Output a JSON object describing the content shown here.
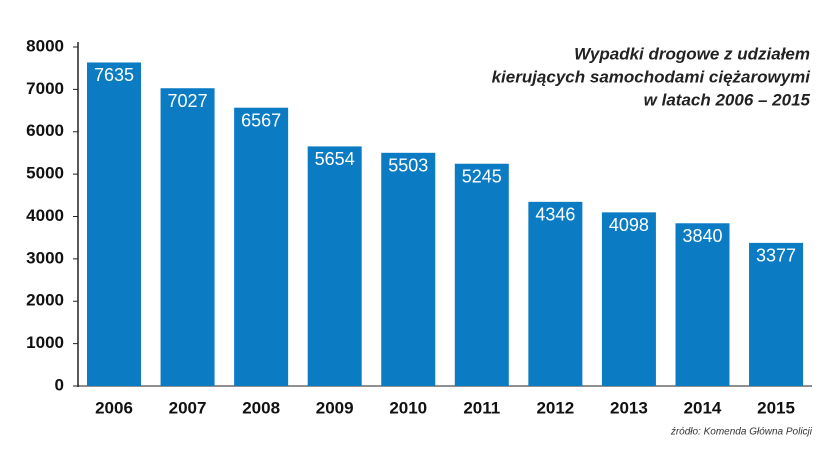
{
  "chart_data": {
    "type": "bar",
    "title": [
      "Wypadki drogowe z udziałem",
      "kierujących samochodami ciężarowymi",
      "w latach 2006 – 2015"
    ],
    "source": "źródło: Komenda Główna Policji",
    "categories": [
      "2006",
      "2007",
      "2008",
      "2009",
      "2010",
      "2011",
      "2012",
      "2013",
      "2014",
      "2015"
    ],
    "values": [
      7635,
      7027,
      6567,
      5654,
      5503,
      5245,
      4346,
      4098,
      3840,
      3377
    ],
    "color": "#0b7cc4",
    "ylim": [
      0,
      8000
    ],
    "yticks": [
      0,
      1000,
      2000,
      3000,
      4000,
      5000,
      6000,
      7000,
      8000
    ]
  }
}
